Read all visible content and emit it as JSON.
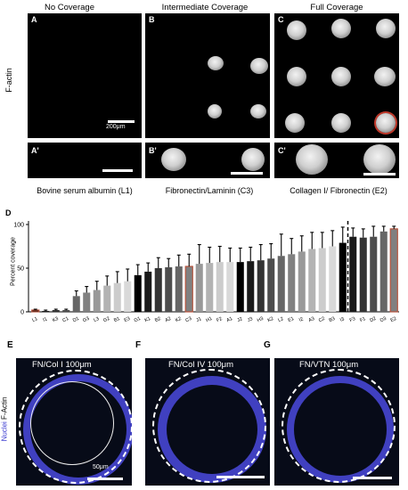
{
  "columns": {
    "col1": "No Coverage",
    "col2": "Intermediate Coverage",
    "col3": "Full Coverage"
  },
  "row_label": "F-actin",
  "panels": {
    "A": "A",
    "B": "B",
    "C": "C",
    "A_prime": "A'",
    "B_prime": "B'",
    "C_prime": "C'",
    "scale_text": "200μm"
  },
  "substrates": {
    "s1": "Bovine serum albumin (L1)",
    "s2": "Fibronectin/Laminin (C3)",
    "s3": "Collagen I/ Fibronectin (E2)"
  },
  "chart_data": {
    "type": "bar",
    "panel_label": "D",
    "ylabel": "Percent coverage",
    "ylim": [
      0,
      100
    ],
    "yticks": [
      0,
      50,
      100
    ],
    "categories": [
      "L1",
      "I1",
      "K3",
      "C1",
      "D1",
      "G3",
      "L3",
      "G2",
      "B1",
      "E3",
      "G1",
      "K1",
      "B2",
      "A2",
      "K2",
      "C3",
      "J1",
      "H1",
      "F2",
      "A1",
      "J2",
      "J3",
      "H3",
      "K2",
      "L2",
      "E1",
      "I2",
      "A3",
      "C2",
      "B3",
      "I3",
      "F3",
      "F1",
      "D2",
      "D3",
      "E2"
    ],
    "values": [
      2,
      1,
      2,
      2,
      18,
      22,
      25,
      30,
      33,
      35,
      42,
      46,
      50,
      51,
      52,
      52,
      55,
      56,
      57,
      57,
      57,
      58,
      59,
      61,
      64,
      66,
      69,
      72,
      73,
      75,
      79,
      86,
      85,
      86,
      92,
      95
    ],
    "errors": [
      1,
      1,
      1,
      1,
      6,
      7,
      10,
      11,
      13,
      14,
      12,
      10,
      12,
      10,
      13,
      14,
      22,
      18,
      18,
      16,
      16,
      16,
      18,
      17,
      25,
      18,
      18,
      19,
      18,
      18,
      18,
      10,
      10,
      12,
      6,
      3
    ],
    "highlighted": [
      "L1",
      "C3",
      "E2"
    ],
    "divider_after": "I3"
  },
  "bottom": {
    "E": {
      "label": "E",
      "title": "FN/Col I 100μm",
      "scale": "50μm"
    },
    "F": {
      "label": "F",
      "title": "FN/Col IV  100μm"
    },
    "G": {
      "label": "G",
      "title": "FN/VTN  100μm"
    },
    "side_label_nuclei": "Nuclei",
    "side_label_factin": "F-Actin"
  }
}
